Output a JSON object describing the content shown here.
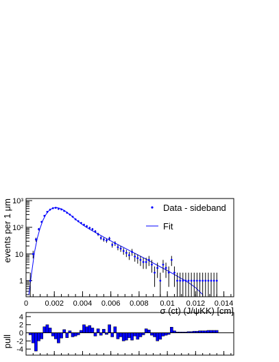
{
  "chart_data": [
    {
      "type": "scatter",
      "xlabel": "σ (ct) (J/ψKK) [cm]",
      "ylabel": "events per 1 μm",
      "xlim": [
        0,
        0.0147
      ],
      "ylim": [
        0.25,
        1200
      ],
      "yscale": "log",
      "xticks": [
        "0",
        "0.002",
        "0.004",
        "0.006",
        "0.008",
        "0.01",
        "0.012",
        "0.014"
      ],
      "yticks": [
        "1",
        "10",
        "10²",
        "10³"
      ],
      "legend": {
        "position": "top-right",
        "entries": [
          {
            "label": "Data - sideband",
            "marker": "point",
            "color": "#0000ff"
          },
          {
            "label": "Fit",
            "marker": "line",
            "color": "#0000ff"
          }
        ]
      },
      "series": [
        {
          "name": "Data - sideband",
          "x": [
            0.0003,
            0.0005,
            0.0007,
            0.0009,
            0.0011,
            0.0013,
            0.0015,
            0.0017,
            0.0019,
            0.0021,
            0.0023,
            0.0025,
            0.0027,
            0.0029,
            0.0031,
            0.0033,
            0.0035,
            0.0037,
            0.0039,
            0.0041,
            0.0043,
            0.0045,
            0.0047,
            0.0049,
            0.0051,
            0.0053,
            0.0055,
            0.0057,
            0.0059,
            0.0061,
            0.0063,
            0.0065,
            0.0067,
            0.0069,
            0.0071,
            0.0073,
            0.0075,
            0.0077,
            0.0079,
            0.0081,
            0.0083,
            0.0085,
            0.0087,
            0.0089,
            0.0091,
            0.0093,
            0.0095,
            0.0097,
            0.0099,
            0.0101,
            0.0103,
            0.0105,
            0.0107,
            0.0109,
            0.0111,
            0.0113,
            0.0115,
            0.0117,
            0.0119,
            0.0121,
            0.0123,
            0.0125,
            0.0127,
            0.0129,
            0.0131,
            0.0133,
            0.0135
          ],
          "y": [
            1,
            10,
            35,
            85,
            160,
            270,
            380,
            460,
            520,
            540,
            490,
            470,
            410,
            350,
            300,
            250,
            200,
            170,
            145,
            125,
            110,
            95,
            85,
            70,
            55,
            40,
            35,
            32,
            38,
            22,
            25,
            18,
            16,
            13,
            11,
            9,
            12,
            8,
            7,
            6,
            5,
            5,
            6,
            4,
            2,
            3,
            1,
            4,
            3,
            2,
            6,
            2,
            1,
            1,
            1,
            1,
            1,
            1,
            1,
            1,
            1,
            1,
            1,
            1,
            1,
            1,
            1
          ],
          "color": "#0000ff"
        },
        {
          "name": "Fit",
          "x": [
            0.0002,
            0.0004,
            0.0006,
            0.0008,
            0.001,
            0.0012,
            0.0014,
            0.0016,
            0.0018,
            0.002,
            0.0022,
            0.0024,
            0.0026,
            0.0028,
            0.003,
            0.0032,
            0.0034,
            0.0036,
            0.0038,
            0.004,
            0.0042,
            0.0044,
            0.0046,
            0.0048,
            0.005,
            0.0055,
            0.006,
            0.0065,
            0.007,
            0.0075,
            0.008,
            0.0085,
            0.009,
            0.0095,
            0.01,
            0.0105,
            0.011,
            0.0115,
            0.012,
            0.0125
          ],
          "y": [
            0.3,
            2,
            12,
            40,
            95,
            185,
            300,
            410,
            495,
            540,
            545,
            515,
            460,
            395,
            330,
            272,
            222,
            182,
            150,
            125,
            106,
            91,
            79,
            69,
            60,
            43,
            31,
            22.5,
            16.5,
            12,
            8.8,
            6.4,
            4.6,
            3.3,
            2.4,
            1.7,
            1.2,
            0.85,
            0.55,
            0.3
          ],
          "color": "#0000ff"
        }
      ]
    },
    {
      "type": "bar",
      "ylabel": "pull",
      "xlim": [
        0,
        0.0147
      ],
      "ylim": [
        -5.5,
        5
      ],
      "yticks": [
        "4",
        "2",
        "0",
        "-2",
        "-4"
      ],
      "series": [
        {
          "name": "",
          "x": [
            0.0003,
            0.0005,
            0.0007,
            0.0009,
            0.0011,
            0.0013,
            0.0015,
            0.0017,
            0.0019,
            0.0021,
            0.0023,
            0.0025,
            0.0027,
            0.0029,
            0.0031,
            0.0033,
            0.0035,
            0.0037,
            0.0039,
            0.0041,
            0.0043,
            0.0045,
            0.0047,
            0.0049,
            0.0051,
            0.0053,
            0.0055,
            0.0057,
            0.0059,
            0.0061,
            0.0063,
            0.0065,
            0.0067,
            0.0069,
            0.0071,
            0.0073,
            0.0075,
            0.0077,
            0.0079,
            0.0081,
            0.0083,
            0.0085,
            0.0087,
            0.0089,
            0.0091,
            0.0093,
            0.0095,
            0.0097,
            0.0099,
            0.0101,
            0.0103,
            0.0105,
            0.0107,
            0.0109,
            0.0111,
            0.0113,
            0.0115,
            0.0117,
            0.0119,
            0.0121,
            0.0123,
            0.0125,
            0.0127,
            0.0129,
            0.0131,
            0.0133,
            0.0135
          ],
          "values": [
            -0.5,
            -2.5,
            -4.5,
            -2,
            -1.5,
            1.5,
            2,
            1.2,
            -0.8,
            -1.5,
            -2.5,
            -1.3,
            0.8,
            -1.2,
            0.5,
            -1,
            -0.8,
            -0.5,
            0.6,
            2,
            1.5,
            1.8,
            1.2,
            -0.8,
            1,
            -0.6,
            0.9,
            -0.4,
            2,
            -1,
            1.5,
            -1.5,
            -1,
            -2,
            -1.8,
            -1.2,
            -1.8,
            -0.8,
            -1.6,
            -1,
            -0.5,
            1,
            0.7,
            -0.6,
            -1,
            -2,
            -1.6,
            -0.8,
            -0.6,
            -0.4,
            1.4,
            0.5,
            0.2,
            0.2,
            0.2,
            0.2,
            0.3,
            0.3,
            0.4,
            0.4,
            0.5,
            0.5,
            0.5,
            0.6,
            0.6,
            0.6,
            0.6
          ],
          "color": "#0000ff"
        }
      ]
    }
  ]
}
